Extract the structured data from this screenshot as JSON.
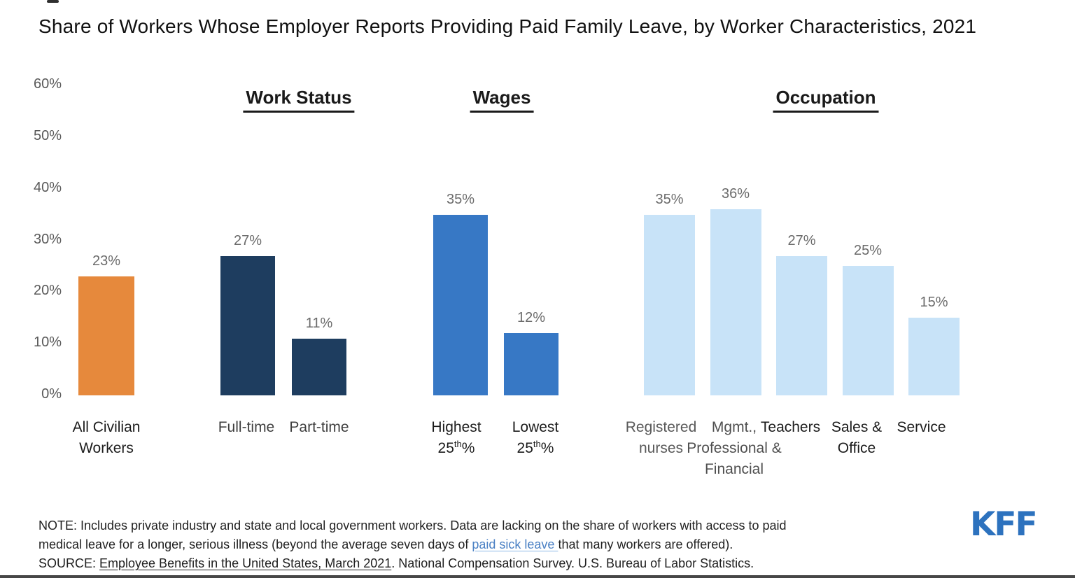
{
  "page": {
    "title": "Share of Workers Whose Employer Reports Providing Paid Family Leave, by Worker Characteristics, 2021"
  },
  "chart_data": {
    "type": "bar",
    "title": "Share of Workers Whose Employer Reports Providing Paid Family Leave, by Worker Characteristics, 2021",
    "xlabel": "",
    "ylabel": "",
    "ylim": [
      0,
      60
    ],
    "grid": false,
    "yticks": [
      {
        "v": 0,
        "label": "0%"
      },
      {
        "v": 10,
        "label": "10%"
      },
      {
        "v": 20,
        "label": "20%"
      },
      {
        "v": 30,
        "label": "30%"
      },
      {
        "v": 40,
        "label": "40%"
      },
      {
        "v": 50,
        "label": "50%"
      },
      {
        "v": 60,
        "label": "60%"
      }
    ],
    "groups": [
      {
        "header": "",
        "color": "#E6893C",
        "bars": [
          {
            "name": "all-civilian-workers",
            "label": "All Civilian\nWorkers",
            "value": 23,
            "display": "23%",
            "label_color": "#1c1c1c"
          }
        ]
      },
      {
        "header": "Work Status",
        "color": "#1E3D5F",
        "bars": [
          {
            "name": "full-time",
            "label": "Full-time",
            "value": 27,
            "display": "27%",
            "label_color": "#3f3f3f"
          },
          {
            "name": "part-time",
            "label": "Part-time",
            "value": 11,
            "display": "11%",
            "label_color": "#3f3f3f"
          }
        ]
      },
      {
        "header": "Wages",
        "color": "#3778C5",
        "bars": [
          {
            "name": "highest-25th-percentile",
            "label": "Highest\n25^th^%",
            "value": 35,
            "display": "35%",
            "label_color": "#1c1c1c"
          },
          {
            "name": "lowest-25th-percentile",
            "label": "Lowest\n25^th^%",
            "value": 12,
            "display": "12%",
            "label_color": "#1c1c1c"
          }
        ]
      },
      {
        "header": "Occupation",
        "color": "#C8E3F8",
        "bars": [
          {
            "name": "registered-nurses",
            "label": "Registered\nnurses",
            "value": 35,
            "display": "35%",
            "label_color": "#595959"
          },
          {
            "name": "mgmt-professional-financial",
            "label": "Mgmt.,\nProfessional &\nFinancial",
            "value": 36,
            "display": "36%",
            "label_color": "#4f4f4f"
          },
          {
            "name": "teachers",
            "label": "Teachers",
            "value": 27,
            "display": "27%",
            "label_color": "#1c1c1c"
          },
          {
            "name": "sales-office",
            "label": "Sales &\nOffice",
            "value": 25,
            "display": "25%",
            "label_color": "#1c1c1c"
          },
          {
            "name": "service",
            "label": "Service",
            "value": 15,
            "display": "15%",
            "label_color": "#1c1c1c"
          }
        ]
      }
    ]
  },
  "footer": {
    "note_lines": [
      [
        {
          "text": "NOTE: Includes private industry and state and local government workers. Data are lacking on the share of workers with access to paid"
        }
      ],
      [
        {
          "text": "medical leave for a longer, serious illness (beyond the average seven days of "
        },
        {
          "text": "paid sick leave ",
          "link": true,
          "name": "paid-sick-leave-link"
        },
        {
          "text": "that many workers are offered)."
        }
      ],
      [
        {
          "text": "SOURCE: "
        },
        {
          "text": "Employee Benefits in the United States, March 2021",
          "underline": true,
          "name": "source-link"
        },
        {
          "text": ". National Compensation Survey. U.S. Bureau of Labor Statistics."
        }
      ]
    ],
    "logo_text": "KFF",
    "logo_color": "#2D72BE"
  }
}
